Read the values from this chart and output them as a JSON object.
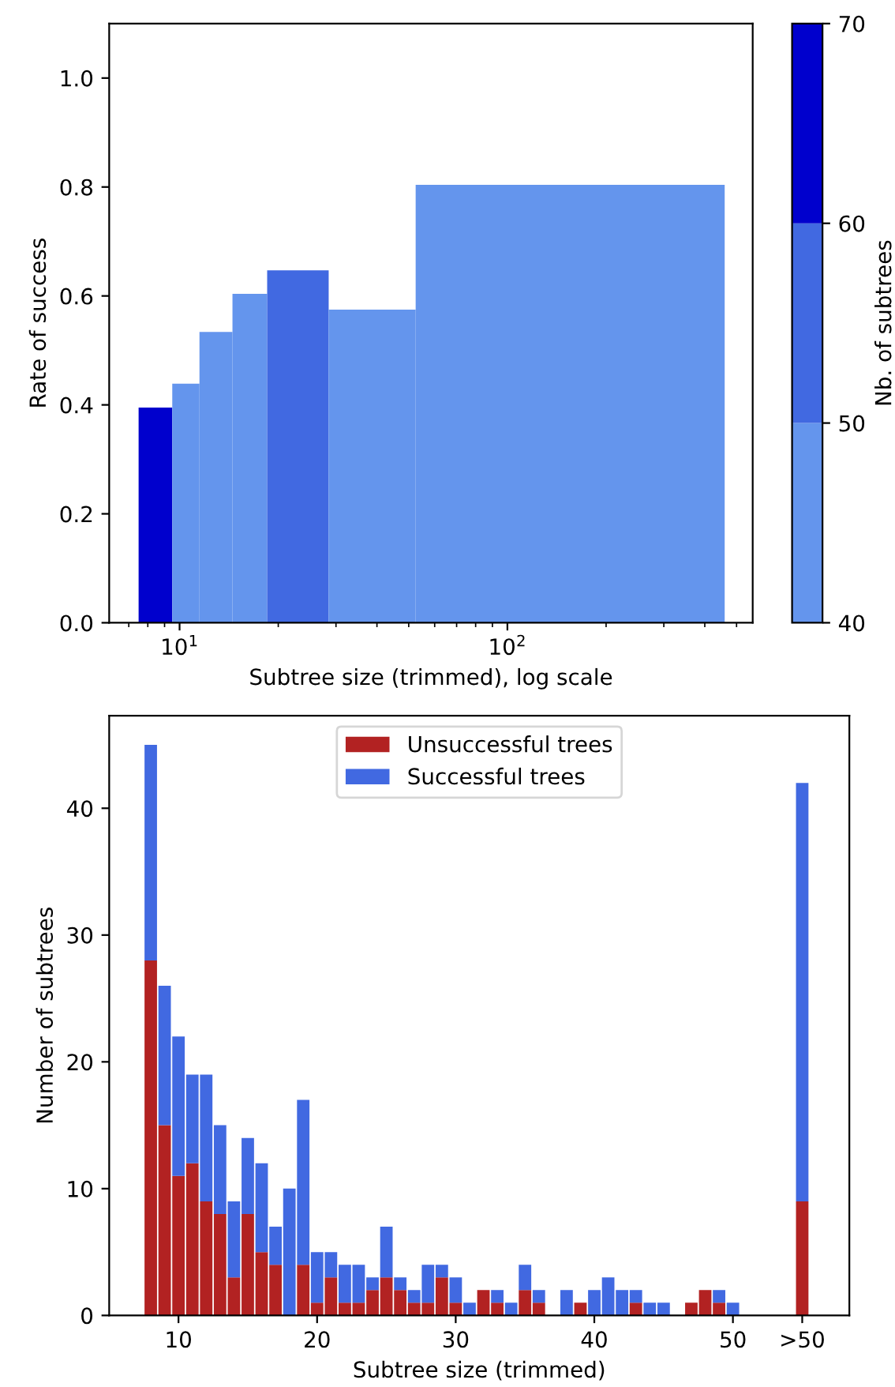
{
  "chart_data": [
    {
      "type": "histogram",
      "ylabel": "Rate of success",
      "xlabel": "Subtree size (trimmed), log scale",
      "clabel": "Nb. of subtrees",
      "bins": [
        7.5,
        9.5,
        11.5,
        14.5,
        18.5,
        28.5,
        52.5,
        460
      ],
      "values": [
        0.395,
        0.439,
        0.534,
        0.604,
        0.647,
        0.575,
        0.804
      ],
      "colors": [
        "#0000cd",
        "#6495ed",
        "#6495ed",
        "#6495ed",
        "#4169e1",
        "#6495ed",
        "#6495ed"
      ],
      "log": "x",
      "xlim": [
        6.1,
        560
      ],
      "xticks": [
        {
          "value": 10,
          "label": "10$^{1}$"
        },
        {
          "value": 100,
          "label": "10$^{2}$"
        }
      ],
      "ylim": [
        0,
        1.1
      ],
      "yticks": [
        {
          "value": 0,
          "label": "0.0"
        },
        0.2,
        0.4,
        0.6,
        0.8,
        {
          "value": 1,
          "label": "1.0"
        }
      ],
      "clim": [
        40,
        70
      ],
      "cticks": [
        40,
        50,
        60,
        70
      ],
      "grid": false
    },
    {
      "type": "bar",
      "stacked": true,
      "xlabel": "Subtree size (trimmed)",
      "ylabel": "Number of subtrees",
      "x": [
        8,
        9,
        10,
        11,
        12,
        13,
        14,
        15,
        16,
        17,
        18,
        19,
        20,
        21,
        22,
        23,
        24,
        25,
        26,
        27,
        28,
        29,
        30,
        31,
        32,
        33,
        34,
        35,
        36,
        37,
        38,
        39,
        40,
        41,
        42,
        43,
        44,
        45,
        46,
        47,
        48,
        49,
        50,
        55
      ],
      "series": [
        {
          "name": "Unsuccessful trees",
          "color": "#b22222",
          "values": [
            28,
            15,
            11,
            12,
            9,
            8,
            3,
            8,
            5,
            4,
            0,
            4,
            1,
            3,
            1,
            1,
            2,
            3,
            2,
            1,
            1,
            3,
            1,
            0,
            2,
            1,
            0,
            2,
            1,
            0,
            0,
            1,
            0,
            0,
            0,
            1,
            0,
            0,
            0,
            1,
            2,
            1,
            0,
            9
          ]
        },
        {
          "name": "Successful trees",
          "color": "#4169e1",
          "values": [
            17,
            11,
            11,
            7,
            10,
            7,
            6,
            6,
            7,
            3,
            10,
            13,
            4,
            2,
            3,
            3,
            1,
            4,
            1,
            1,
            3,
            1,
            2,
            1,
            0,
            1,
            1,
            2,
            1,
            0,
            2,
            0,
            2,
            3,
            2,
            1,
            1,
            1,
            0,
            0,
            0,
            1,
            1,
            33
          ]
        }
      ],
      "xlim": [
        5,
        58.4
      ],
      "xticks": [
        10,
        20,
        30,
        40,
        50,
        {
          "value": 55,
          "label": ">50"
        }
      ],
      "ylim": [
        0,
        47.3
      ],
      "yticks": [
        0,
        10,
        20,
        30,
        40
      ],
      "grid": false,
      "legend": "top"
    }
  ]
}
